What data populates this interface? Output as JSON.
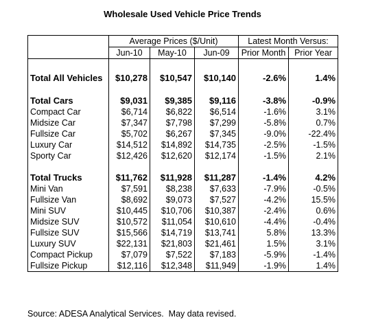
{
  "title": "Wholesale Used Vehicle Price Trends",
  "table": {
    "group_headers": [
      "Average Prices ($/Unit)",
      "Latest Month Versus:"
    ],
    "columns": [
      "Jun-10",
      "May-10",
      "Jun-09",
      "Prior Month",
      "Prior Year"
    ],
    "sections": [
      {
        "rows": [
          [
            "Total All Vehicles",
            "$10,278",
            "$10,547",
            "$10,140",
            "-2.6%",
            "1.4%"
          ]
        ]
      },
      {
        "rows": [
          [
            "Total Cars",
            "$9,031",
            "$9,385",
            "$9,116",
            "-3.8%",
            "-0.9%"
          ],
          [
            "Compact Car",
            "$6,714",
            "$6,822",
            "$6,514",
            "-1.6%",
            "3.1%"
          ],
          [
            "Midsize Car",
            "$7,347",
            "$7,798",
            "$7,299",
            "-5.8%",
            "0.7%"
          ],
          [
            "Fullsize Car",
            "$5,702",
            "$6,267",
            "$7,345",
            "-9.0%",
            "-22.4%"
          ],
          [
            "Luxury Car",
            "$14,512",
            "$14,892",
            "$14,735",
            "-2.5%",
            "-1.5%"
          ],
          [
            "Sporty Car",
            "$12,426",
            "$12,620",
            "$12,174",
            "-1.5%",
            "2.1%"
          ]
        ]
      },
      {
        "rows": [
          [
            "Total Trucks",
            "$11,762",
            "$11,928",
            "$11,287",
            "-1.4%",
            "4.2%"
          ],
          [
            "Mini Van",
            "$7,591",
            "$8,238",
            "$7,633",
            "-7.9%",
            "-0.5%"
          ],
          [
            "Fullsize Van",
            "$8,692",
            "$9,073",
            "$7,527",
            "-4.2%",
            "15.5%"
          ],
          [
            "Mini SUV",
            "$10,445",
            "$10,706",
            "$10,387",
            "-2.4%",
            "0.6%"
          ],
          [
            "Midsize SUV",
            "$10,572",
            "$11,054",
            "$10,610",
            "-4.4%",
            "-0.4%"
          ],
          [
            "Fullsize SUV",
            "$15,566",
            "$14,719",
            "$13,741",
            "5.8%",
            "13.3%"
          ],
          [
            "Luxury SUV",
            "$22,131",
            "$21,803",
            "$21,461",
            "1.5%",
            "3.1%"
          ],
          [
            "Compact Pickup",
            "$7,079",
            "$7,522",
            "$7,183",
            "-5.9%",
            "-1.4%"
          ],
          [
            "Fullsize Pickup",
            "$12,116",
            "$12,348",
            "$11,949",
            "-1.9%",
            "1.4%"
          ]
        ]
      }
    ]
  },
  "source": "Source: ADESA Analytical Services.  May data revised."
}
